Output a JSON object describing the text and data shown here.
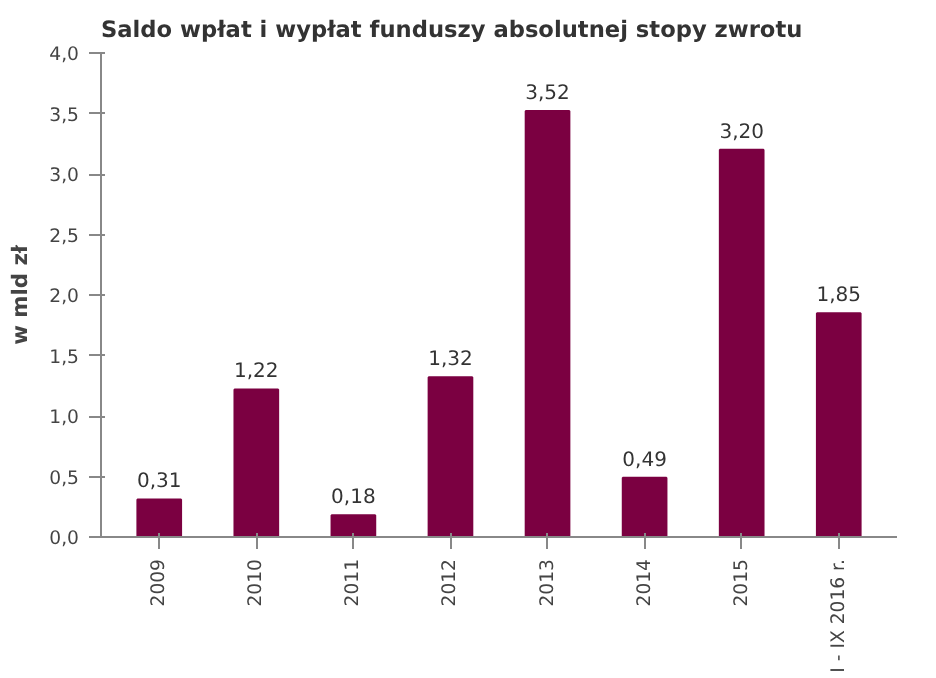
{
  "chart_data": {
    "type": "bar",
    "title": "Saldo wpłat i wypłat funduszy absolutnej stopy zwrotu",
    "ylabel": "w mld zł",
    "categories": [
      "2009",
      "2010",
      "2011",
      "2012",
      "2013",
      "2014",
      "2015",
      "I - IX 2016 r."
    ],
    "values": [
      0.31,
      1.22,
      0.18,
      1.32,
      3.52,
      0.49,
      3.2,
      1.85
    ],
    "value_labels": [
      "0,31",
      "1,22",
      "0,18",
      "1,32",
      "3,52",
      "0,49",
      "3,20",
      "1,85"
    ],
    "color": "#7b0041",
    "ylim": [
      0,
      4
    ],
    "yticks": [
      {
        "value": 0,
        "label": "0,0"
      },
      {
        "value": 0.5,
        "label": "0,5"
      },
      {
        "value": 1,
        "label": "1,0"
      },
      {
        "value": 1.5,
        "label": "1,5"
      },
      {
        "value": 2,
        "label": "2,0"
      },
      {
        "value": 2.5,
        "label": "2,5"
      },
      {
        "value": 3,
        "label": "3,0"
      },
      {
        "value": 3.5,
        "label": "3,5"
      },
      {
        "value": 4,
        "label": "4,0"
      }
    ],
    "grid": false
  }
}
